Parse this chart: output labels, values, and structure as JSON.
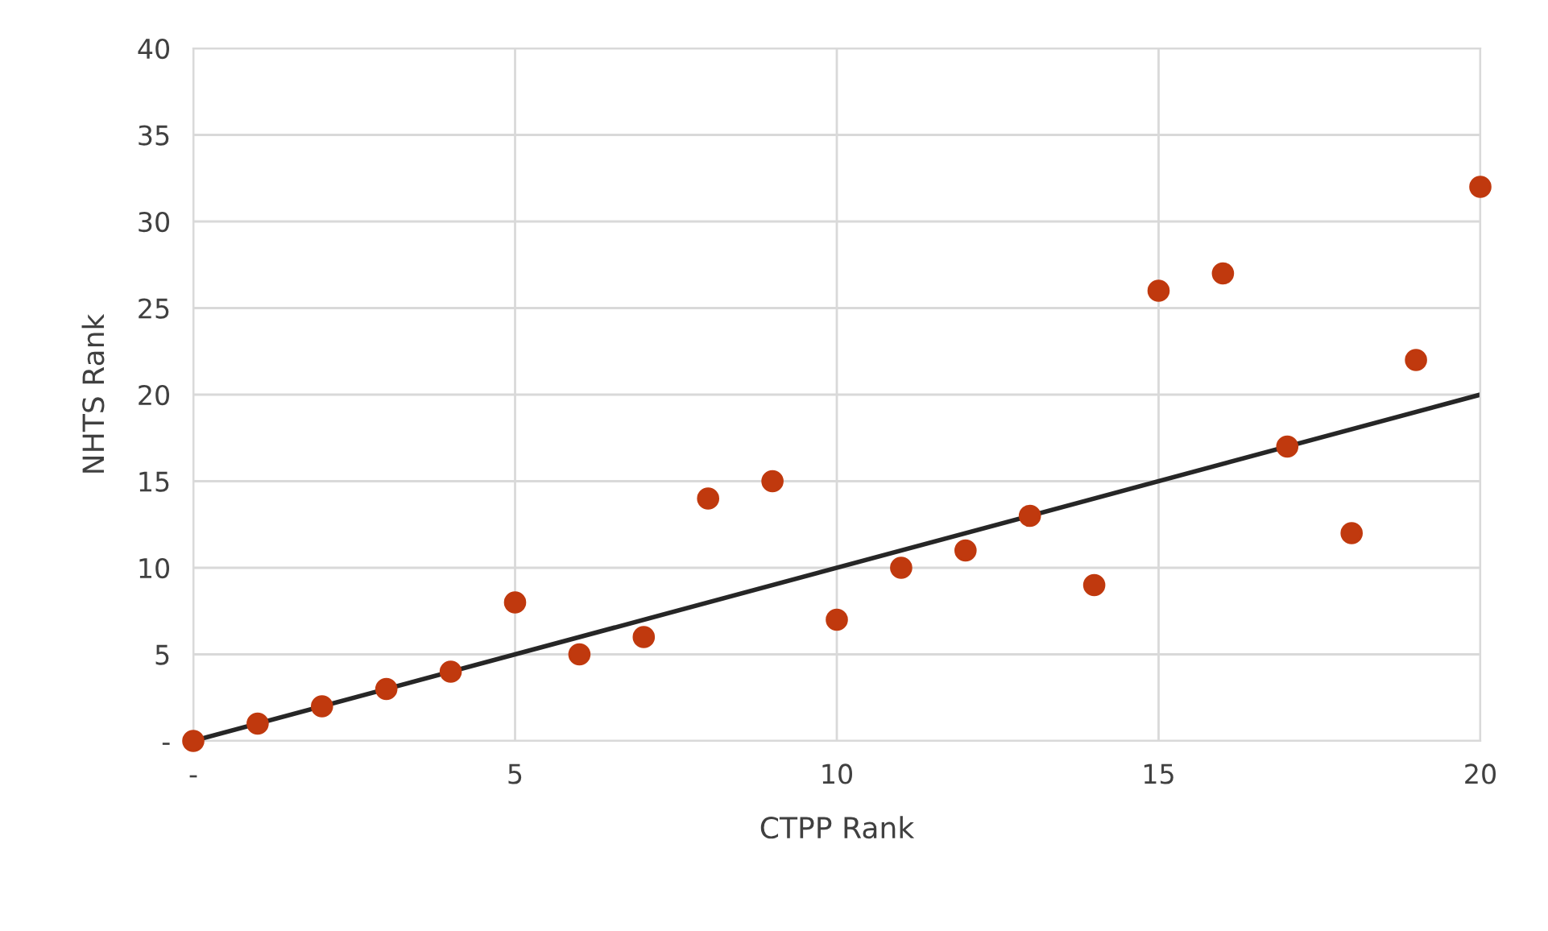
{
  "chart_data": {
    "type": "scatter",
    "xlabel": "CTPP Rank",
    "ylabel": "NHTS Rank",
    "x": [
      0,
      1,
      2,
      3,
      4,
      5,
      6,
      7,
      8,
      9,
      10,
      11,
      12,
      13,
      14,
      15,
      16,
      17,
      18,
      19,
      20
    ],
    "series": [
      {
        "marker": "circle",
        "color": "#c0390e",
        "values": [
          0,
          1,
          2,
          3,
          4,
          8,
          5,
          6,
          14,
          15,
          7,
          10,
          11,
          13,
          9,
          26,
          27,
          17,
          12,
          22,
          32
        ]
      },
      {
        "type": "line",
        "marker": "none",
        "color": "#262626",
        "x": [
          0,
          20
        ],
        "values": [
          0,
          20
        ]
      }
    ],
    "xlim": [
      0,
      20
    ],
    "xticks": [
      {
        "value": 0,
        "label": "-"
      },
      5,
      10,
      15,
      20
    ],
    "ylim": [
      0,
      40
    ],
    "yticks": [
      {
        "value": 0,
        "label": "-"
      },
      5,
      10,
      15,
      20,
      25,
      30,
      35,
      40
    ],
    "grid": true,
    "legend": false
  }
}
